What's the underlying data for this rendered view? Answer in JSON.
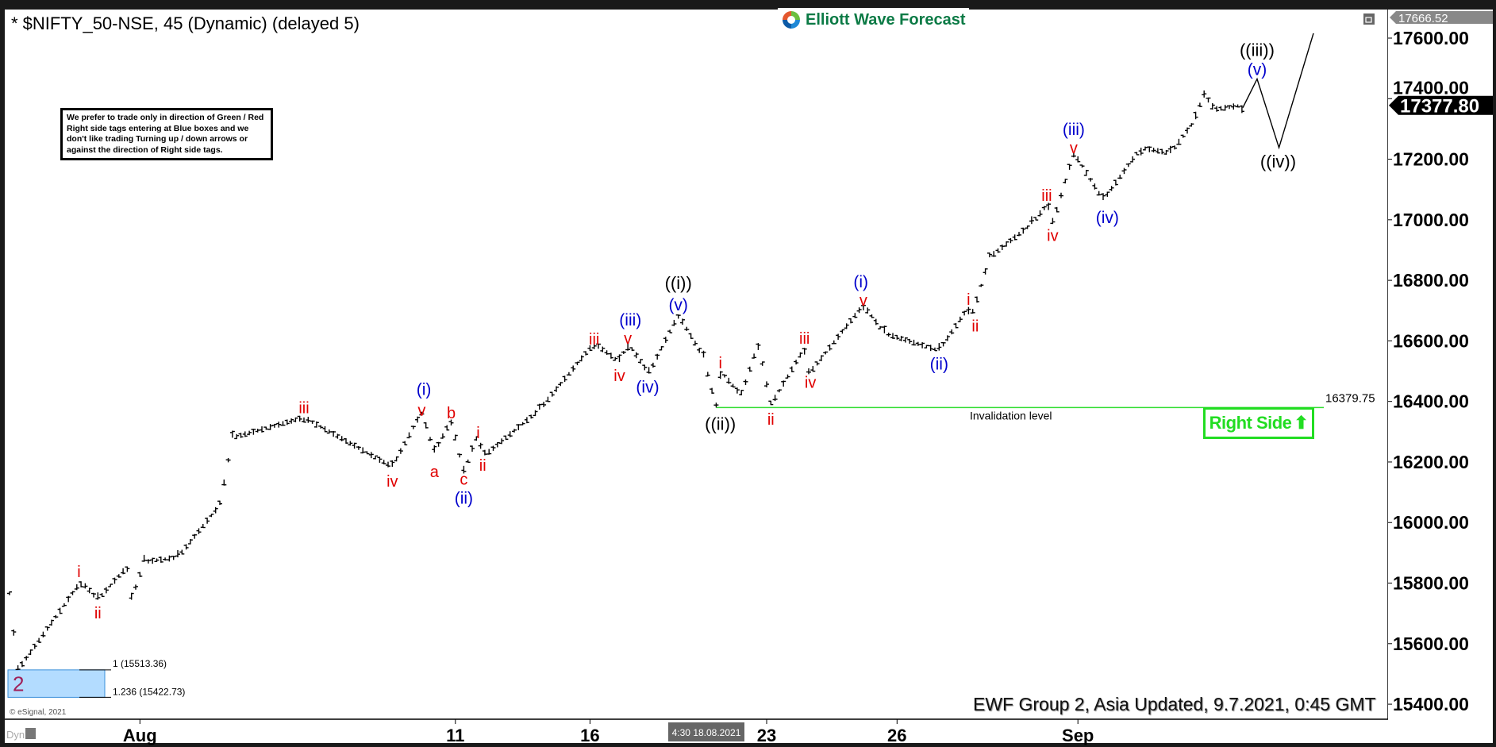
{
  "header": {
    "title": "* $NIFTY_50-NSE, 45 (Dynamic) (delayed 5)",
    "logo_text": "Elliott Wave Forecast",
    "restore_icon": "window-restore-icon"
  },
  "note": "We prefer to trade only in direction of Green / Red Right side tags entering at Blue boxes and we don't like trading Turning up / down arrows or against the direction of Right side tags.",
  "footer": {
    "updated": "EWF Group 2, Asia Updated, 9.7.2021, 0:45 GMT",
    "copyright": "© eSignal, 2021",
    "dyn": "Dyn",
    "crosshair_time": "4:30 18.08.2021"
  },
  "colors": {
    "bars": "#000000",
    "minor_label": "#e00000",
    "minute_label": "#0000cc",
    "minuette_label": "#000000",
    "invalidation": "#33dd33",
    "right_side": "#22dd22",
    "blue_box": "#b3dcff"
  },
  "chart_data": {
    "type": "ohlc-bar",
    "ylim": [
      15342,
      17697
    ],
    "y_ticks": [
      15400,
      15600,
      15800,
      16000,
      16200,
      16400,
      16600,
      16800,
      17000,
      17200,
      17400,
      17600
    ],
    "y_tick_labels": [
      "15400.00",
      "15600.00",
      "15800.00",
      "16000.00",
      "16200.00",
      "16400.00",
      "16600.00",
      "16800.00",
      "17000.00",
      "17200.00",
      "17400.00",
      "17600.00"
    ],
    "x_ticks": [
      {
        "label": "Aug",
        "bar": 31
      },
      {
        "label": "11",
        "bar": 106
      },
      {
        "label": "16",
        "bar": 138
      },
      {
        "label": "23",
        "bar": 180
      },
      {
        "label": "26",
        "bar": 211
      },
      {
        "label": "Sep",
        "bar": 254
      }
    ],
    "last_price": 17377.8,
    "last_price_label": "17377.80",
    "high_marker": 17666.52,
    "high_marker_label": "17666.52",
    "price_swings": [
      [
        0,
        15760
      ],
      [
        2,
        15513
      ],
      [
        17,
        15806
      ],
      [
        21,
        15745
      ],
      [
        28,
        15855
      ],
      [
        29,
        15745
      ],
      [
        32,
        15870
      ],
      [
        40,
        15885
      ],
      [
        50,
        16058
      ],
      [
        53,
        16280
      ],
      [
        70,
        16347
      ],
      [
        91,
        16184
      ],
      [
        98,
        16366
      ],
      [
        101,
        16231
      ],
      [
        105,
        16340
      ],
      [
        108,
        16162
      ],
      [
        111,
        16285
      ],
      [
        113,
        16222
      ],
      [
        126,
        16373
      ],
      [
        139,
        16593
      ],
      [
        145,
        16530
      ],
      [
        147,
        16593
      ],
      [
        152,
        16492
      ],
      [
        159,
        16687
      ],
      [
        165,
        16545
      ],
      [
        168,
        16380
      ],
      [
        169,
        16500
      ],
      [
        174,
        16420
      ],
      [
        178,
        16593
      ],
      [
        181,
        16388
      ],
      [
        189,
        16577
      ],
      [
        190,
        16490
      ],
      [
        203,
        16719
      ],
      [
        208,
        16625
      ],
      [
        221,
        16568
      ],
      [
        228,
        16712
      ],
      [
        229,
        16690
      ],
      [
        233,
        16876
      ],
      [
        243,
        16986
      ],
      [
        247,
        17056
      ],
      [
        248,
        16986
      ],
      [
        253,
        17222
      ],
      [
        260,
        17065
      ],
      [
        269,
        17238
      ],
      [
        276,
        17220
      ],
      [
        282,
        17332
      ],
      [
        284,
        17427
      ],
      [
        286,
        17364
      ],
      [
        293,
        17378
      ]
    ],
    "projection": [
      [
        293.2,
        17370
      ],
      [
        296.6,
        17465
      ],
      [
        301.8,
        17238
      ],
      [
        310,
        17616
      ]
    ],
    "wave_labels": [
      {
        "text": "i",
        "level": "minor",
        "bar": 16.5,
        "price": 15838
      },
      {
        "text": "ii",
        "level": "minor",
        "bar": 21,
        "price": 15702
      },
      {
        "text": "iii",
        "level": "minor",
        "bar": 70,
        "price": 16379
      },
      {
        "text": "iv",
        "level": "minor",
        "bar": 91,
        "price": 16137
      },
      {
        "text": "(i)",
        "level": "minute",
        "bar": 98.5,
        "price": 16440
      },
      {
        "text": "v",
        "level": "minor",
        "bar": 98,
        "price": 16372
      },
      {
        "text": "b",
        "level": "minor",
        "bar": 105,
        "price": 16363
      },
      {
        "text": "a",
        "level": "minor",
        "bar": 101,
        "price": 16168
      },
      {
        "text": "c",
        "level": "minor",
        "bar": 108,
        "price": 16130
      },
      {
        "text": "(ii)",
        "level": "minute",
        "bar": 108,
        "price": 16080
      },
      {
        "text": "i",
        "level": "minor",
        "bar": 111.4,
        "price": 16297
      },
      {
        "text": "ii",
        "level": "minor",
        "bar": 112.5,
        "price": 16190
      },
      {
        "text": "iii",
        "level": "minor",
        "bar": 139,
        "price": 16606
      },
      {
        "text": "(iii)",
        "level": "minute",
        "bar": 147.6,
        "price": 16660
      },
      {
        "text": "v",
        "level": "minor",
        "bar": 147,
        "price": 16609
      },
      {
        "text": "iv",
        "level": "minor",
        "bar": 145,
        "price": 16486
      },
      {
        "text": "(iv)",
        "level": "minute",
        "bar": 151.7,
        "price": 16448
      },
      {
        "text": "((i))",
        "level": "minuette",
        "bar": 159,
        "price": 16790
      },
      {
        "text": "(v)",
        "level": "minute",
        "bar": 159,
        "price": 16719
      },
      {
        "text": "i",
        "level": "minor",
        "bar": 169,
        "price": 16527
      },
      {
        "text": "((ii))",
        "level": "minuette",
        "bar": 169,
        "price": 16325
      },
      {
        "text": "ii",
        "level": "minor",
        "bar": 181,
        "price": 16341
      },
      {
        "text": "iii",
        "level": "minor",
        "bar": 189,
        "price": 16609
      },
      {
        "text": "iv",
        "level": "minor",
        "bar": 190.4,
        "price": 16464
      },
      {
        "text": "(i)",
        "level": "minute",
        "bar": 202.4,
        "price": 16790
      },
      {
        "text": "v",
        "level": "minor",
        "bar": 203,
        "price": 16735
      },
      {
        "text": "(ii)",
        "level": "minute",
        "bar": 221,
        "price": 16524
      },
      {
        "text": "i",
        "level": "minor",
        "bar": 228,
        "price": 16738
      },
      {
        "text": "ii",
        "level": "minor",
        "bar": 229.6,
        "price": 16650
      },
      {
        "text": "iii",
        "level": "minor",
        "bar": 246.6,
        "price": 17081
      },
      {
        "text": "iv",
        "level": "minor",
        "bar": 248,
        "price": 16949
      },
      {
        "text": "(iii)",
        "level": "minute",
        "bar": 253,
        "price": 17290
      },
      {
        "text": "v",
        "level": "minor",
        "bar": 253,
        "price": 17238
      },
      {
        "text": "(iv)",
        "level": "minute",
        "bar": 261,
        "price": 17008
      },
      {
        "text": "((iii))",
        "level": "minuette",
        "bar": 296.6,
        "price": 17556
      },
      {
        "text": "(v)",
        "level": "minute",
        "bar": 296.6,
        "price": 17496
      },
      {
        "text": "((iv))",
        "level": "minuette",
        "bar": 301.6,
        "price": 17191
      }
    ],
    "invalidation": {
      "price": 16379.75,
      "price_label": "16379.75",
      "label": "Invalidation level",
      "start_bar": 168
    },
    "blue_box": {
      "label": "2",
      "top": 15513.36,
      "bottom": 15422.73,
      "top_label": "1 (15513.36)",
      "bottom_label": "1.236 (15422.73)"
    },
    "right_side_tag": "Right Side"
  }
}
